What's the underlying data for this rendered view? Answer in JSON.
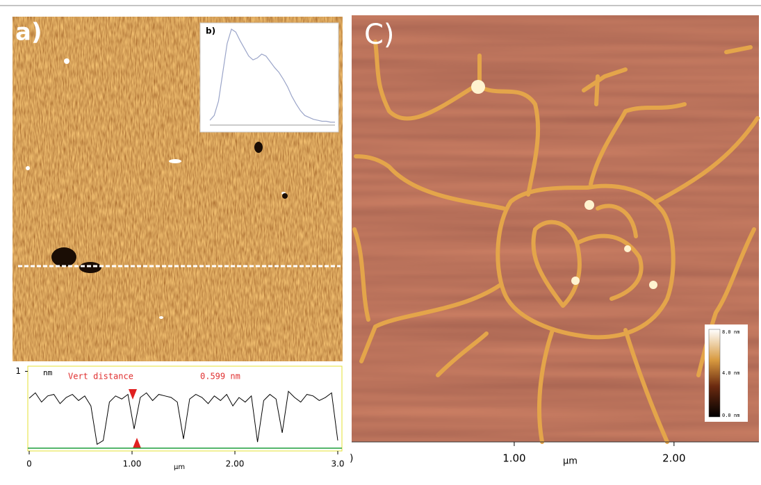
{
  "panel_a": {
    "label": "a)"
  },
  "inset_b": {
    "label": "b)",
    "curve": [
      0.05,
      0.1,
      0.25,
      0.55,
      0.85,
      1.0,
      0.97,
      0.88,
      0.8,
      0.72,
      0.68,
      0.7,
      0.74,
      0.72,
      0.66,
      0.6,
      0.55,
      0.48,
      0.4,
      0.3,
      0.22,
      0.15,
      0.1,
      0.08,
      0.06,
      0.05,
      0.04,
      0.04,
      0.03,
      0.03
    ]
  },
  "profile": {
    "type": "line",
    "y_unit": "nm",
    "annotation_label": "Vert distance",
    "annotation_value": "0.599 nm",
    "x_unit": "μm",
    "x": [
      0,
      0.06,
      0.12,
      0.18,
      0.24,
      0.3,
      0.36,
      0.42,
      0.48,
      0.54,
      0.6,
      0.66,
      0.72,
      0.78,
      0.84,
      0.9,
      0.96,
      1.02,
      1.08,
      1.14,
      1.2,
      1.26,
      1.32,
      1.38,
      1.44,
      1.5,
      1.56,
      1.62,
      1.68,
      1.74,
      1.8,
      1.86,
      1.92,
      1.98,
      2.04,
      2.1,
      2.16,
      2.22,
      2.28,
      2.34,
      2.4,
      2.46,
      2.52,
      2.58,
      2.64,
      2.7,
      2.76,
      2.82,
      2.88,
      2.94,
      3.0
    ],
    "values": [
      0.65,
      0.72,
      0.6,
      0.68,
      0.7,
      0.58,
      0.66,
      0.7,
      0.62,
      0.68,
      0.55,
      0.05,
      0.1,
      0.6,
      0.68,
      0.64,
      0.7,
      0.25,
      0.66,
      0.72,
      0.62,
      0.7,
      0.68,
      0.66,
      0.6,
      0.12,
      0.64,
      0.7,
      0.66,
      0.58,
      0.68,
      0.62,
      0.7,
      0.55,
      0.66,
      0.6,
      0.68,
      0.08,
      0.62,
      0.7,
      0.64,
      0.2,
      0.74,
      0.66,
      0.6,
      0.7,
      0.68,
      0.62,
      0.66,
      0.72,
      0.1
    ],
    "color": "#000000",
    "baseline_color": "#1a9e3a",
    "xlim": [
      0,
      3
    ],
    "ylim": [
      0,
      1.04
    ],
    "xticks": [
      0,
      {
        "value": 1,
        "label": "1.00"
      },
      {
        "value": 2,
        "label": "2.00"
      },
      {
        "value": 3,
        "label": "3.0"
      }
    ],
    "yticks": [
      1
    ]
  },
  "panel_c": {
    "label": "C)",
    "x_unit": "μm",
    "edge_label": ")",
    "xlim": [
      0,
      2.54
    ],
    "xticks": [
      {
        "value": 1,
        "label": "1.00"
      },
      {
        "value": 2,
        "label": "2.00"
      }
    ],
    "colorbar": {
      "labels": [
        "8.0 nm",
        "4.0 nm",
        "0.0 nm"
      ]
    }
  }
}
